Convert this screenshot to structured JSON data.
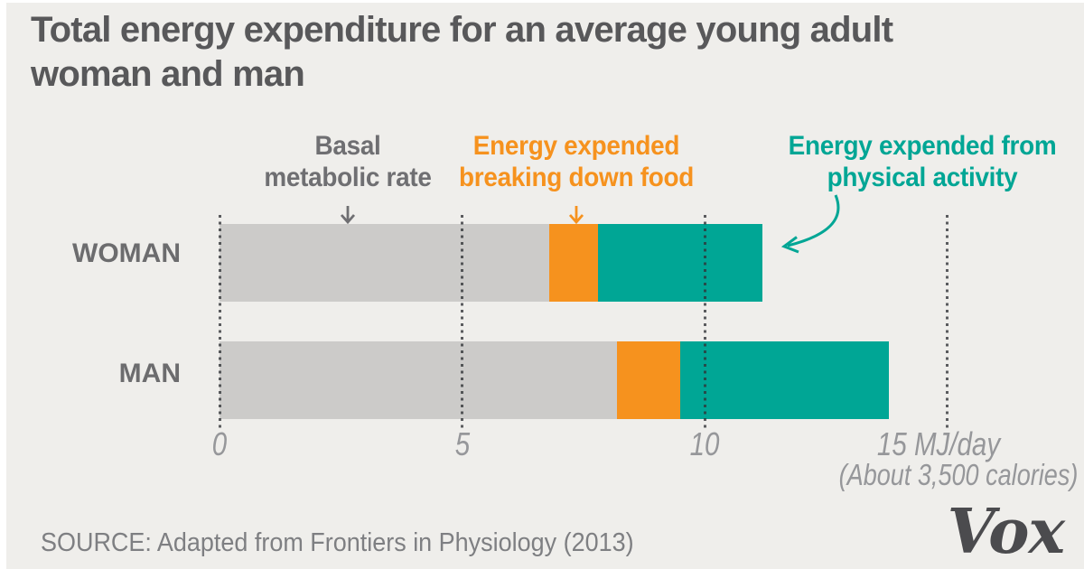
{
  "title_lines": [
    "Total energy expenditure for an average young adult",
    "woman and man"
  ],
  "legend": [
    {
      "id": "bmr",
      "line1": "Basal",
      "line2": "metabolic rate",
      "color": "#6F6F72"
    },
    {
      "id": "tef",
      "line1": "Energy expended",
      "line2": "breaking down food",
      "color": "#F6921E"
    },
    {
      "id": "activity",
      "line1": "Energy expended from",
      "line2": "physical activity",
      "color": "#00A695"
    }
  ],
  "chart_data": {
    "type": "bar",
    "orientation": "horizontal",
    "stacked": true,
    "categories": [
      "WOMAN",
      "MAN"
    ],
    "series": [
      {
        "name": "Basal metabolic rate",
        "color": "#CCCBC9",
        "values": [
          6.8,
          8.2
        ]
      },
      {
        "name": "Energy expended breaking down food",
        "color": "#F6921E",
        "values": [
          1.0,
          1.3
        ]
      },
      {
        "name": "Energy expended from physical activity",
        "color": "#00A695",
        "values": [
          3.4,
          4.3
        ]
      }
    ],
    "xlim": [
      0,
      15.3
    ],
    "xticks": [
      0,
      5,
      10,
      15
    ],
    "xtick_labels": [
      "0",
      "5",
      "10",
      "15 MJ/day"
    ],
    "axis_note": "(About 3,500 calories)",
    "units": "MJ/day",
    "grid": "dotted-vertical"
  },
  "source": "SOURCE: Adapted from Frontiers in Physiology (2013)",
  "logo": "Vox",
  "colors": {
    "background": "#EFEEEB",
    "title": "#58585A",
    "bar_gray": "#CCCBC9",
    "orange": "#F6921E",
    "teal": "#00A695",
    "axis": "#96979A"
  }
}
